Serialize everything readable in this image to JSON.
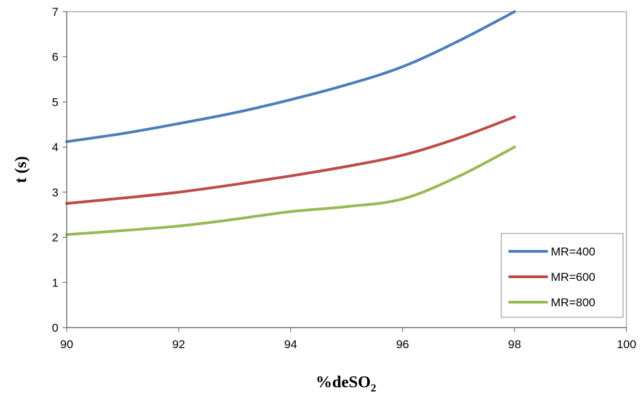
{
  "chart_data": {
    "type": "line",
    "title": "",
    "xlabel_main": "%deSO",
    "xlabel_sub": "2",
    "ylabel": "t (s)",
    "xlim": [
      90,
      100
    ],
    "ylim": [
      0,
      7
    ],
    "xticks": [
      90,
      92,
      94,
      96,
      98,
      100
    ],
    "yticks": [
      0,
      1,
      2,
      3,
      4,
      5,
      6,
      7
    ],
    "grid": false,
    "legend_position": "bottom-right",
    "series": [
      {
        "name": "MR=400",
        "color": "#4a7ebb",
        "x": [
          90,
          91,
          92,
          93,
          94,
          95,
          96,
          97,
          98
        ],
        "y": [
          4.12,
          4.3,
          4.52,
          4.76,
          5.05,
          5.38,
          5.78,
          6.35,
          7.0
        ]
      },
      {
        "name": "MR=600",
        "color": "#be4b48",
        "x": [
          90,
          91,
          92,
          93,
          94,
          95,
          96,
          97,
          98
        ],
        "y": [
          2.75,
          2.87,
          3.0,
          3.17,
          3.36,
          3.57,
          3.82,
          4.2,
          4.67
        ]
      },
      {
        "name": "MR=800",
        "color": "#98b954",
        "x": [
          90,
          91,
          92,
          93,
          94,
          95,
          96,
          97,
          98
        ],
        "y": [
          2.06,
          2.15,
          2.25,
          2.4,
          2.57,
          2.68,
          2.85,
          3.35,
          4.0
        ]
      }
    ]
  }
}
